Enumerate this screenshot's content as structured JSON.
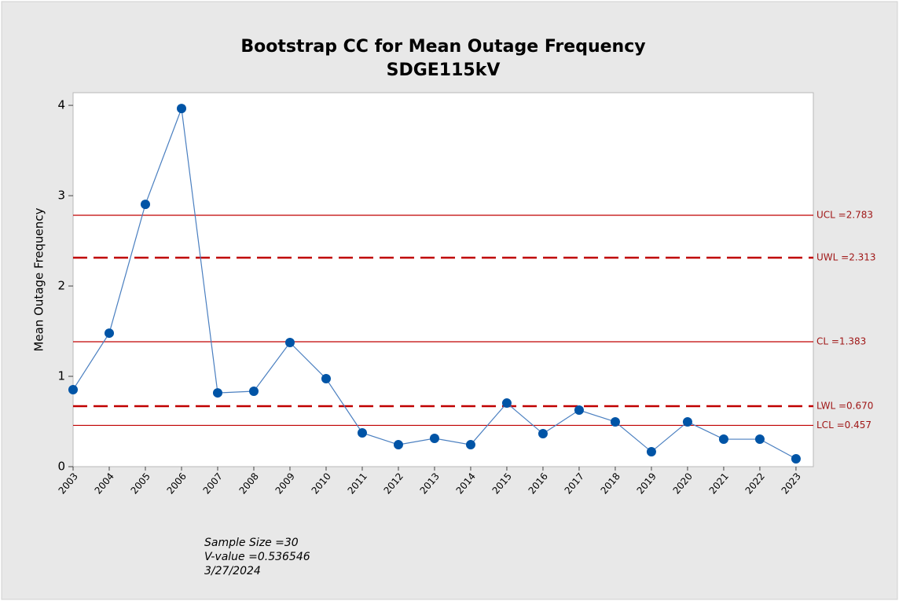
{
  "chart_data": {
    "type": "line",
    "title": "Bootstrap CC for Mean Outage Frequency",
    "subtitle": "SDGE115kV",
    "y_label": "Mean Outage Frequency",
    "x": [
      2003,
      2004,
      2005,
      2006,
      2007,
      2008,
      2009,
      2010,
      2011,
      2012,
      2013,
      2014,
      2015,
      2016,
      2017,
      2018,
      2019,
      2020,
      2021,
      2022,
      2023
    ],
    "series": [
      {
        "name": "Mean Outage Frequency",
        "color": "#0054a6",
        "line_color": "#4a7fc0",
        "values": [
          0.852,
          1.478,
          2.904,
          3.965,
          0.817,
          0.835,
          1.374,
          0.974,
          0.374,
          0.243,
          0.313,
          0.243,
          0.704,
          0.365,
          0.626,
          0.496,
          0.165,
          0.496,
          0.304,
          0.304,
          0.087
        ]
      }
    ],
    "xlim": [
      2003,
      2023.48
    ],
    "xticks": [
      2003,
      2004,
      2005,
      2006,
      2007,
      2008,
      2009,
      2010,
      2011,
      2012,
      2013,
      2014,
      2015,
      2016,
      2017,
      2018,
      2019,
      2020,
      2021,
      2022,
      2023
    ],
    "ylim": [
      0,
      4.14
    ],
    "yticks": [
      0,
      1,
      2,
      3,
      4
    ],
    "control_limits": [
      {
        "value": 2.783,
        "label": "UCL =2.783",
        "style": "solid"
      },
      {
        "value": 2.313,
        "label": "UWL =2.313",
        "style": "dashed"
      },
      {
        "value": 1.383,
        "label": "CL =1.383",
        "style": "solid"
      },
      {
        "value": 0.67,
        "label": "LWL =0.670",
        "style": "dashed"
      },
      {
        "value": 0.457,
        "label": "LCL =0.457",
        "style": "solid"
      }
    ],
    "limit_color": "#c00000",
    "limit_label_color": "#a01818",
    "annotations": [
      "Sample Size =30",
      "V-value =0.536546",
      "3/27/2024"
    ]
  }
}
